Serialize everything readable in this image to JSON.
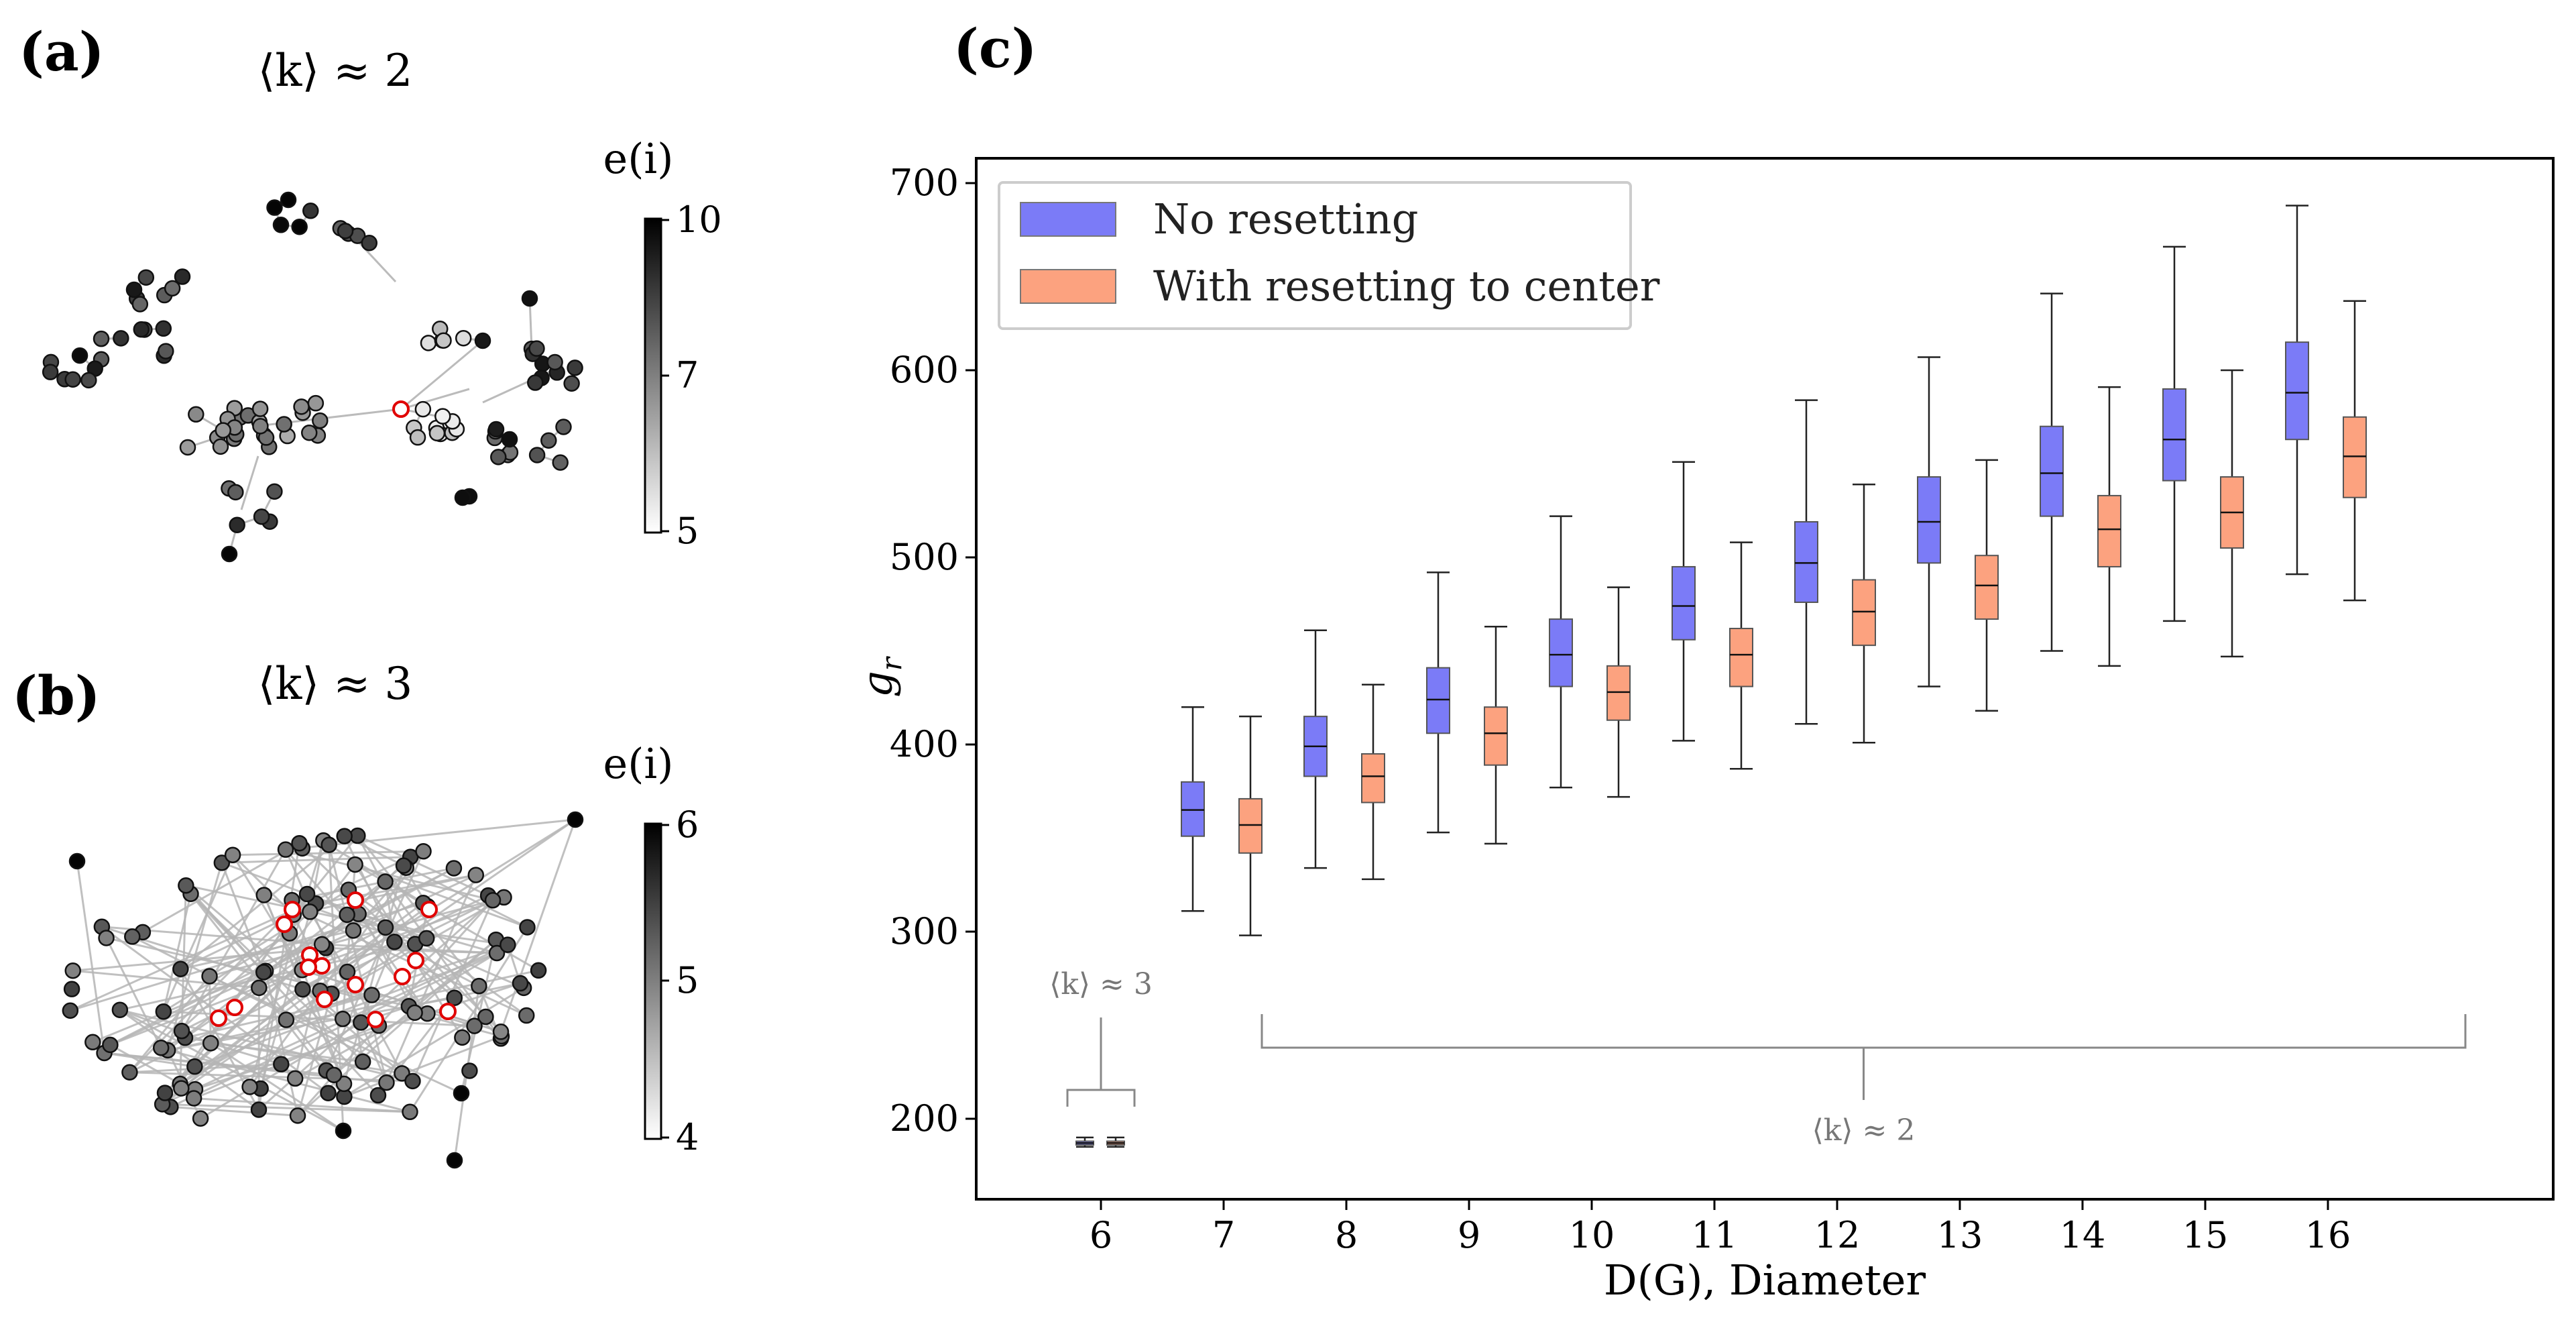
{
  "panel_a": {
    "label": "(a)",
    "title": "⟨k⟩ ≈ 2",
    "colorbar": {
      "label": "e(i)",
      "ticks": [
        "10",
        "7",
        "5"
      ],
      "min": 5,
      "max": 10
    }
  },
  "panel_b": {
    "label": "(b)",
    "title": "⟨k⟩ ≈ 3",
    "colorbar": {
      "label": "e(i)",
      "ticks": [
        "6",
        "5",
        "4"
      ],
      "min": 4,
      "max": 6
    }
  },
  "panel_c": {
    "label": "(c)"
  },
  "colors": {
    "no_reset": "#7b7bf7",
    "with_reset": "#fca27f",
    "highlight": "#e00000"
  },
  "chart_data": {
    "type": "box",
    "title": "",
    "xlabel": "D(G), Diameter",
    "ylabel": "g_r",
    "ylim": [
      155,
      720
    ],
    "xticks": [
      "6",
      "7",
      "8",
      "9",
      "10",
      "11",
      "12",
      "13",
      "14",
      "15",
      "16"
    ],
    "yticks": [
      "200",
      "300",
      "400",
      "500",
      "600",
      "700"
    ],
    "legend": {
      "position": "top-left",
      "entries": [
        "No resetting",
        "With resetting to center"
      ]
    },
    "annotations": [
      {
        "text": "⟨k⟩ ≈ 3",
        "spans": [
          "6"
        ]
      },
      {
        "text": "⟨k⟩ ≈ 2",
        "spans": [
          "7",
          "16"
        ]
      }
    ],
    "series": [
      {
        "name": "No resetting",
        "boxes": [
          {
            "x": "6",
            "whislo": 185,
            "q1": 186,
            "med": 187,
            "q3": 188,
            "whishi": 190
          },
          {
            "x": "7",
            "whislo": 311,
            "q1": 351,
            "med": 365,
            "q3": 380,
            "whishi": 420
          },
          {
            "x": "8",
            "whislo": 334,
            "q1": 383,
            "med": 399,
            "q3": 415,
            "whishi": 461
          },
          {
            "x": "9",
            "whislo": 353,
            "q1": 406,
            "med": 424,
            "q3": 441,
            "whishi": 492
          },
          {
            "x": "10",
            "whislo": 377,
            "q1": 431,
            "med": 448,
            "q3": 467,
            "whishi": 522
          },
          {
            "x": "11",
            "whislo": 402,
            "q1": 456,
            "med": 474,
            "q3": 495,
            "whishi": 551
          },
          {
            "x": "12",
            "whislo": 411,
            "q1": 476,
            "med": 497,
            "q3": 519,
            "whishi": 584
          },
          {
            "x": "13",
            "whislo": 431,
            "q1": 497,
            "med": 519,
            "q3": 543,
            "whishi": 607
          },
          {
            "x": "14",
            "whislo": 450,
            "q1": 522,
            "med": 545,
            "q3": 570,
            "whishi": 641
          },
          {
            "x": "15",
            "whislo": 466,
            "q1": 541,
            "med": 563,
            "q3": 590,
            "whishi": 666
          },
          {
            "x": "16",
            "whislo": 491,
            "q1": 563,
            "med": 588,
            "q3": 615,
            "whishi": 688
          }
        ]
      },
      {
        "name": "With resetting to center",
        "boxes": [
          {
            "x": "6",
            "whislo": 185,
            "q1": 186,
            "med": 187,
            "q3": 188,
            "whishi": 190
          },
          {
            "x": "7",
            "whislo": 298,
            "q1": 342,
            "med": 357,
            "q3": 371,
            "whishi": 415
          },
          {
            "x": "8",
            "whislo": 328,
            "q1": 369,
            "med": 383,
            "q3": 395,
            "whishi": 432
          },
          {
            "x": "9",
            "whislo": 347,
            "q1": 389,
            "med": 406,
            "q3": 420,
            "whishi": 463
          },
          {
            "x": "10",
            "whislo": 372,
            "q1": 413,
            "med": 428,
            "q3": 442,
            "whishi": 484
          },
          {
            "x": "11",
            "whislo": 387,
            "q1": 431,
            "med": 448,
            "q3": 462,
            "whishi": 508
          },
          {
            "x": "12",
            "whislo": 401,
            "q1": 453,
            "med": 471,
            "q3": 488,
            "whishi": 539
          },
          {
            "x": "13",
            "whislo": 418,
            "q1": 467,
            "med": 485,
            "q3": 501,
            "whishi": 552
          },
          {
            "x": "14",
            "whislo": 442,
            "q1": 495,
            "med": 515,
            "q3": 533,
            "whishi": 591
          },
          {
            "x": "15",
            "whislo": 447,
            "q1": 505,
            "med": 524,
            "q3": 543,
            "whishi": 600
          },
          {
            "x": "16",
            "whislo": 477,
            "q1": 532,
            "med": 554,
            "q3": 575,
            "whishi": 637
          }
        ]
      }
    ]
  }
}
